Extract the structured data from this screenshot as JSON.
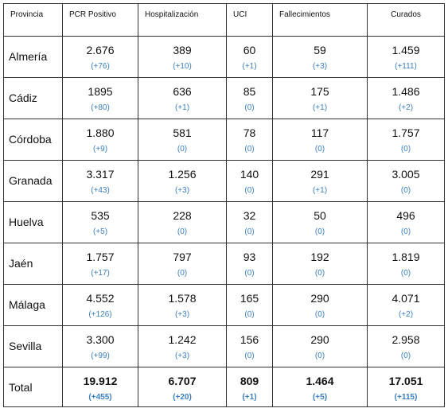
{
  "headers": [
    "Provincia",
    "PCR Positivo",
    "Hospitalización",
    "UCI",
    "Fallecimientos",
    "Curados"
  ],
  "rows": [
    {
      "provincia": "Almería",
      "pcr": "2.676",
      "pcr_delta": "(+76)",
      "hosp": "389",
      "hosp_delta": "(+10)",
      "uci": "60",
      "uci_delta": "(+1)",
      "fall": "59",
      "fall_delta": "(+3)",
      "cur": "1.459",
      "cur_delta": "(+111)"
    },
    {
      "provincia": "Cádiz",
      "pcr": "1895",
      "pcr_delta": "(+80)",
      "hosp": "636",
      "hosp_delta": "(+1)",
      "uci": "85",
      "uci_delta": "(0)",
      "fall": "175",
      "fall_delta": "(+1)",
      "cur": "1.486",
      "cur_delta": "(+2)"
    },
    {
      "provincia": "Córdoba",
      "pcr": "1.880",
      "pcr_delta": "(+9)",
      "hosp": "581",
      "hosp_delta": "(0)",
      "uci": "78",
      "uci_delta": "(0)",
      "fall": "117",
      "fall_delta": "(0)",
      "cur": "1.757",
      "cur_delta": "(0)"
    },
    {
      "provincia": "Granada",
      "pcr": "3.317",
      "pcr_delta": "(+43)",
      "hosp": "1.256",
      "hosp_delta": "(+3)",
      "uci": "140",
      "uci_delta": "(0)",
      "fall": "291",
      "fall_delta": "(+1)",
      "cur": "3.005",
      "cur_delta": "(0)"
    },
    {
      "provincia": "Huelva",
      "pcr": "535",
      "pcr_delta": "(+5)",
      "hosp": "228",
      "hosp_delta": "(0)",
      "uci": "32",
      "uci_delta": "(0)",
      "fall": "50",
      "fall_delta": "(0)",
      "cur": "496",
      "cur_delta": "(0)"
    },
    {
      "provincia": "Jaén",
      "pcr": "1.757",
      "pcr_delta": "(+17)",
      "hosp": "797",
      "hosp_delta": "(0)",
      "uci": "93",
      "uci_delta": "(0)",
      "fall": "192",
      "fall_delta": "(0)",
      "cur": "1.819",
      "cur_delta": "(0)"
    },
    {
      "provincia": "Málaga",
      "pcr": "4.552",
      "pcr_delta": "(+126)",
      "hosp": "1.578",
      "hosp_delta": "(+3)",
      "uci": "165",
      "uci_delta": "(0)",
      "fall": "290",
      "fall_delta": "(0)",
      "cur": "4.071",
      "cur_delta": "(+2)"
    },
    {
      "provincia": "Sevilla",
      "pcr": "3.300",
      "pcr_delta": "(+99)",
      "hosp": "1.242",
      "hosp_delta": "(+3)",
      "uci": "156",
      "uci_delta": "(0)",
      "fall": "290",
      "fall_delta": "(0)",
      "cur": "2.958",
      "cur_delta": "(0)"
    }
  ],
  "total": {
    "provincia": "Total",
    "pcr": "19.912",
    "pcr_delta": "(+455)",
    "hosp": "6.707",
    "hosp_delta": "(+20)",
    "uci": "809",
    "uci_delta": "(+1)",
    "fall": "1.464",
    "fall_delta": "(+5)",
    "cur": "17.051",
    "cur_delta": "(+115)"
  },
  "colors": {
    "delta": "#3b7fc0",
    "border": "#333333",
    "text": "#111111"
  }
}
